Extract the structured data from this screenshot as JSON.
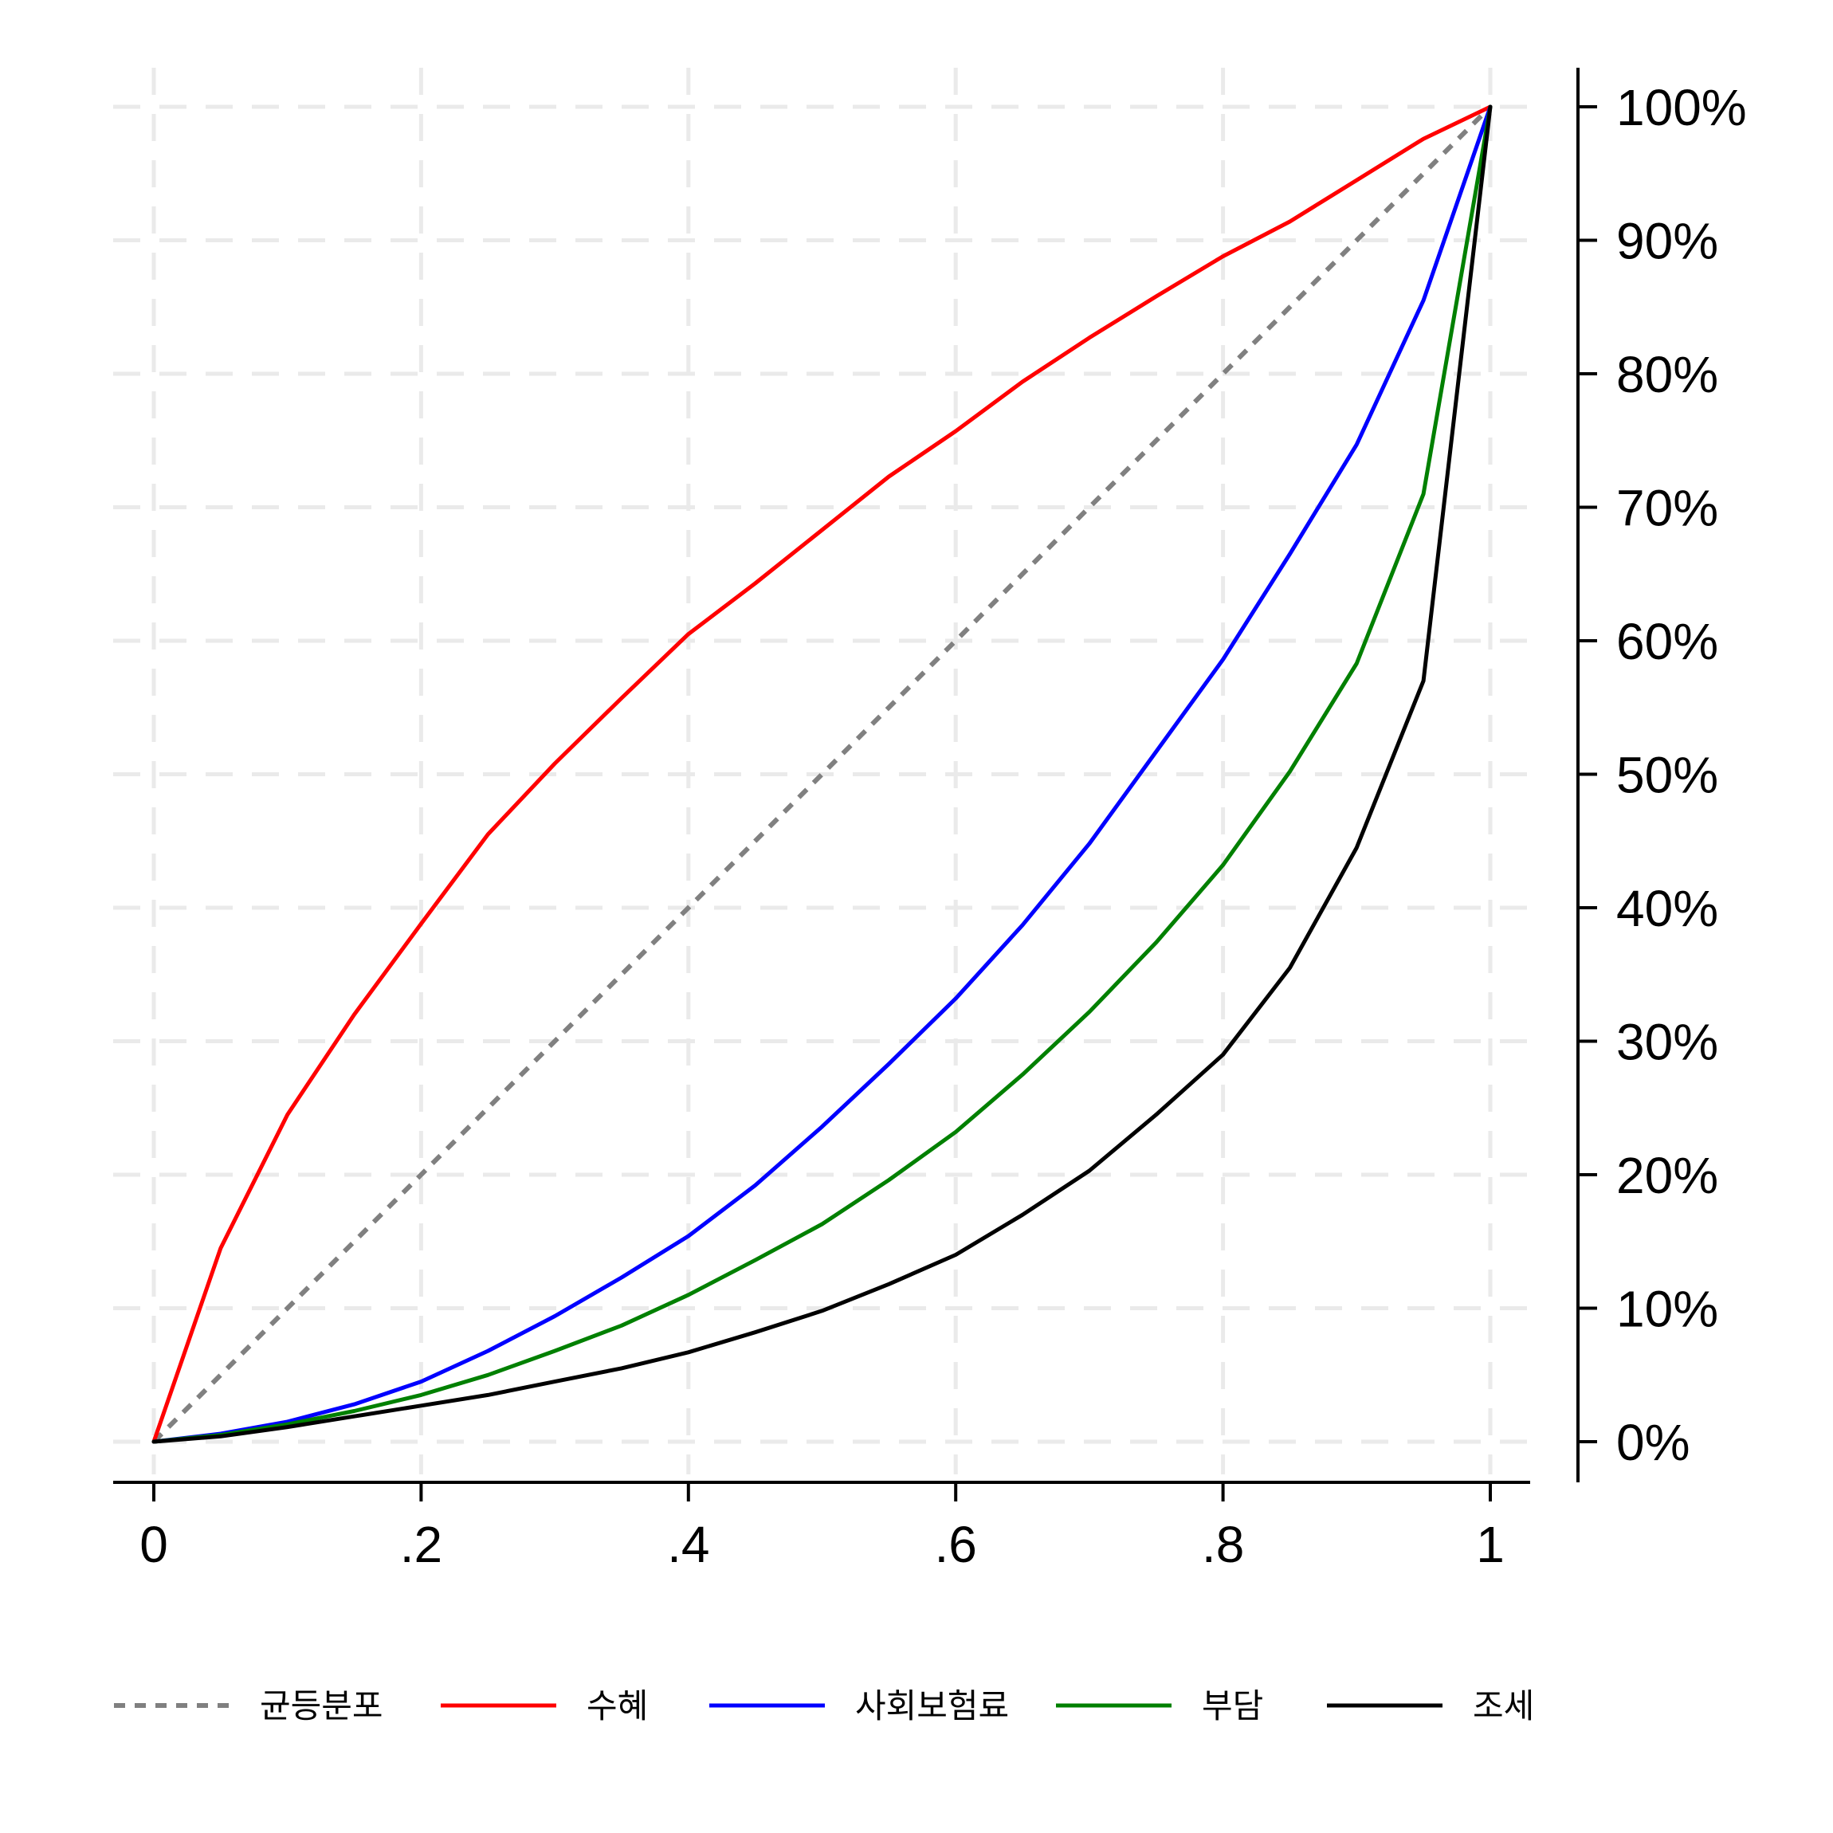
{
  "chart_data": {
    "type": "line",
    "title": "",
    "xlabel": "",
    "ylabel": "",
    "xlim": [
      0,
      1
    ],
    "ylim": [
      0,
      100
    ],
    "grid": true,
    "legend_position": "bottom",
    "x_ticks": [
      {
        "value": 0,
        "label": "0"
      },
      {
        "value": 0.2,
        "label": ".2"
      },
      {
        "value": 0.4,
        "label": ".4"
      },
      {
        "value": 0.6,
        "label": ".6"
      },
      {
        "value": 0.8,
        "label": ".8"
      },
      {
        "value": 1,
        "label": "1"
      }
    ],
    "y_ticks": [
      {
        "value": 0,
        "label": "0%"
      },
      {
        "value": 10,
        "label": "10%"
      },
      {
        "value": 20,
        "label": "20%"
      },
      {
        "value": 30,
        "label": "30%"
      },
      {
        "value": 40,
        "label": "40%"
      },
      {
        "value": 50,
        "label": "50%"
      },
      {
        "value": 60,
        "label": "60%"
      },
      {
        "value": 70,
        "label": "70%"
      },
      {
        "value": 80,
        "label": "80%"
      },
      {
        "value": 90,
        "label": "90%"
      },
      {
        "value": 100,
        "label": "100%"
      }
    ],
    "x": [
      0,
      0.05,
      0.1,
      0.15,
      0.2,
      0.25,
      0.3,
      0.35,
      0.4,
      0.45,
      0.5,
      0.55,
      0.6,
      0.65,
      0.7,
      0.75,
      0.8,
      0.85,
      0.9,
      0.95,
      1
    ],
    "series": [
      {
        "name": "균등분포",
        "color": "#808080",
        "dash": "dashed",
        "values": [
          0,
          5,
          10,
          15,
          20,
          25,
          30,
          35,
          40,
          45,
          50,
          55,
          60,
          65,
          70,
          75,
          80,
          85,
          90,
          95,
          100
        ]
      },
      {
        "name": "수혜",
        "color": "#ff0000",
        "dash": "solid",
        "values": [
          0,
          14.5,
          24.5,
          32,
          38.8,
          45.5,
          50.8,
          55.7,
          60.5,
          64.3,
          68.3,
          72.3,
          75.7,
          79.4,
          82.7,
          85.8,
          88.8,
          91.4,
          94.5,
          97.6,
          100
        ]
      },
      {
        "name": "사회보험료",
        "color": "#0000ff",
        "dash": "solid",
        "values": [
          0,
          0.6,
          1.5,
          2.8,
          4.5,
          6.8,
          9.4,
          12.3,
          15.4,
          19.2,
          23.6,
          28.3,
          33.2,
          38.7,
          44.8,
          51.7,
          58.6,
          66.5,
          74.7,
          85.5,
          100
        ]
      },
      {
        "name": "부담",
        "color": "#008000",
        "dash": "solid",
        "values": [
          0,
          0.5,
          1.3,
          2.3,
          3.5,
          5,
          6.8,
          8.7,
          11,
          13.6,
          16.3,
          19.6,
          23.2,
          27.5,
          32.2,
          37.4,
          43.2,
          50.2,
          58.3,
          71,
          100
        ]
      },
      {
        "name": "조세",
        "color": "#000000",
        "dash": "solid",
        "values": [
          0,
          0.4,
          1.1,
          1.9,
          2.7,
          3.5,
          4.5,
          5.5,
          6.7,
          8.2,
          9.8,
          11.8,
          14,
          17,
          20.3,
          24.5,
          29,
          35.5,
          44.5,
          57,
          100
        ]
      }
    ]
  }
}
